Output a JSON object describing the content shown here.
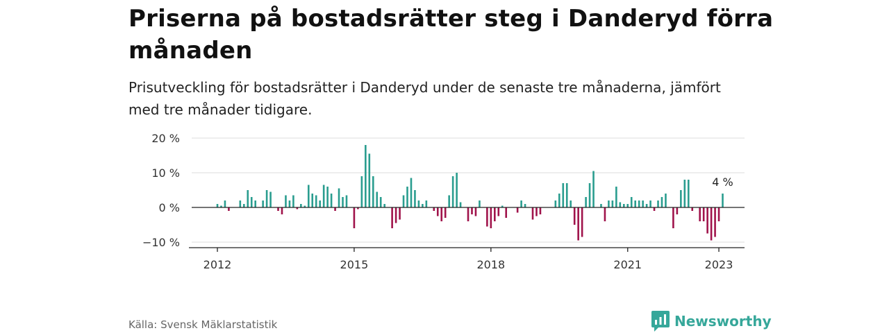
{
  "header": {
    "title": "Priserna på bostadsrätter steg i Danderyd förra månaden",
    "subtitle": "Prisutveckling för bostadsrätter i Danderyd under de senaste tre månaderna, jämfört med tre månader tidigare."
  },
  "footer": {
    "source": "Källa: Svensk Mäklarstatistik",
    "brand": "Newsworthy"
  },
  "colors": {
    "positive": "#2a9d8f",
    "negative": "#a0134b",
    "brand": "#36a79a"
  },
  "chart_data": {
    "type": "bar",
    "x_start": "2012-01",
    "x_interval": "month",
    "ylim": [
      -12,
      20
    ],
    "y_ticks": [
      {
        "value": 20,
        "label": "20 %"
      },
      {
        "value": 10,
        "label": "10 %"
      },
      {
        "value": 0,
        "label": "0 %"
      },
      {
        "value": -10,
        "label": "−10 %"
      }
    ],
    "x_ticks": [
      {
        "value": "2012-01",
        "label": "2012"
      },
      {
        "value": "2015-01",
        "label": "2015"
      },
      {
        "value": "2018-01",
        "label": "2018"
      },
      {
        "value": "2021-01",
        "label": "2021"
      },
      {
        "value": "2023-01",
        "label": "2023"
      }
    ],
    "annotation": {
      "label": "4 %",
      "value": 4
    },
    "values": [
      1,
      0.5,
      2,
      -1,
      0,
      0,
      2,
      1,
      5,
      3,
      2,
      0,
      2,
      5,
      4.5,
      0,
      -1,
      -2,
      3.5,
      2,
      3.5,
      -0.5,
      1,
      0.5,
      6.5,
      4,
      3.5,
      2,
      6.5,
      6,
      4,
      -1,
      5.5,
      3,
      3.5,
      0,
      -6,
      -0.5,
      9,
      18,
      15.5,
      9,
      4.5,
      3,
      1,
      0,
      -6,
      -4.5,
      -3.5,
      3.5,
      6,
      8.5,
      5,
      2,
      1,
      2,
      0,
      -1,
      -2.5,
      -4,
      -3,
      3.5,
      9,
      10,
      1.5,
      0,
      -4,
      -2,
      -2.5,
      2,
      0,
      -5.5,
      -6,
      -4,
      -2.5,
      0.5,
      -3,
      0,
      0,
      -1.5,
      2,
      1,
      0,
      -3.5,
      -2.5,
      -2,
      0,
      0,
      0,
      2,
      4,
      7,
      7,
      2,
      -5,
      -9.5,
      -8.5,
      3,
      7,
      10.5,
      0,
      1,
      -4,
      2,
      2,
      6,
      1.5,
      1,
      1,
      3,
      2,
      2,
      2,
      1,
      2,
      -1,
      2,
      3,
      4,
      0,
      -6,
      -2,
      5,
      8,
      8,
      -1,
      0,
      -4,
      -4,
      -7.5,
      -9.5,
      -8.5,
      -4,
      4
    ]
  }
}
